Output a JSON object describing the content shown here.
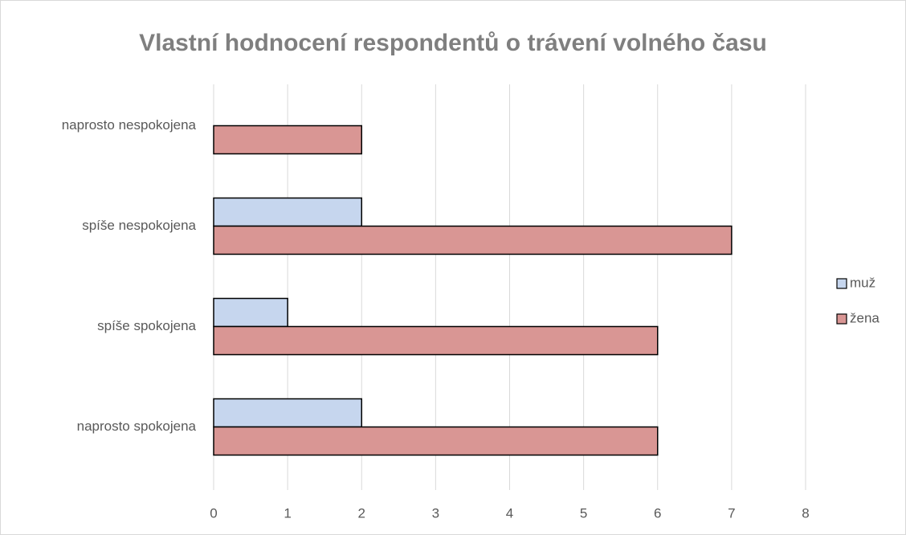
{
  "chart_data": {
    "type": "barh",
    "title": "Vlastní hodnocení respondentů o trávení volného času",
    "categories": [
      "naprosto nespokojena",
      "spíše nespokojena",
      "spíše spokojena",
      "naprosto spokojena"
    ],
    "series": [
      {
        "name": "muž",
        "color": "#c6d6ee",
        "values": [
          0,
          2,
          1,
          2
        ]
      },
      {
        "name": "žena",
        "color": "#d99694",
        "values": [
          2,
          7,
          6,
          6
        ]
      }
    ],
    "xlim": [
      0,
      8
    ],
    "xticks": [
      0,
      1,
      2,
      3,
      4,
      5,
      6,
      7,
      8
    ],
    "grid": true,
    "legend": "right"
  }
}
